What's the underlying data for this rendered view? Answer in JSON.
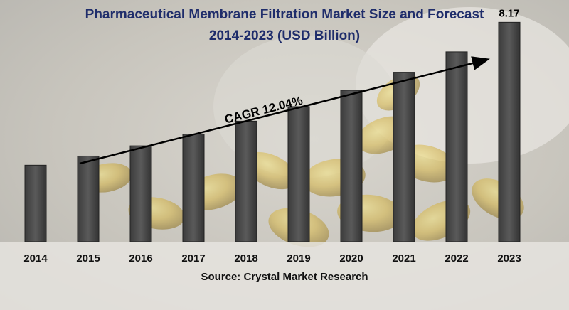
{
  "title_line1": "Pharmaceutical Membrane Filtration Market Size and Forecast",
  "title_line2": "2014-2023 (USD Billion)",
  "source": "Source: Crystal Market Research",
  "cagr_label": "CAGR 12.04%",
  "colors": {
    "title": "#1f2d6b",
    "bar": "#4a4a4a",
    "bar_edge": "#222222",
    "arrow": "#000000"
  },
  "chart_data": {
    "type": "bar",
    "categories": [
      "2014",
      "2015",
      "2016",
      "2017",
      "2018",
      "2019",
      "2020",
      "2021",
      "2022",
      "2023"
    ],
    "values": [
      2.85,
      3.19,
      3.57,
      4.01,
      4.49,
      5.03,
      5.64,
      6.31,
      7.07,
      8.17
    ],
    "data_labels": {
      "2023": "8.17"
    },
    "title": "Pharmaceutical Membrane Filtration Market Size and Forecast 2014-2023 (USD Billion)",
    "xlabel": "",
    "ylabel": "",
    "ylim": [
      0,
      9
    ],
    "grid": false,
    "annotation": "CAGR 12.04%"
  }
}
